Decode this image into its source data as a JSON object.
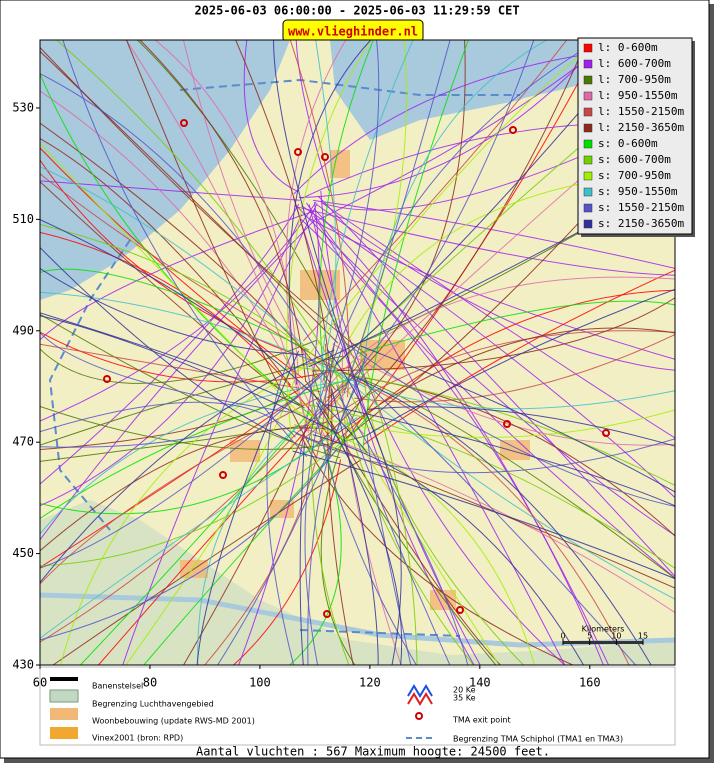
{
  "header": {
    "title": "2025-06-03 06:00:00 - 2025-06-03 11:29:59 CET",
    "link": "www.vlieghinder.nl"
  },
  "map": {
    "xlim": [
      60,
      175.5
    ],
    "ylim": [
      430,
      542.2
    ],
    "xticks": [
      60,
      80,
      100,
      120,
      140,
      160
    ],
    "yticks": [
      430,
      450,
      470,
      490,
      510,
      530
    ]
  },
  "legend": {
    "items": [
      {
        "label": "l: 0-600m",
        "color": "#ff0000"
      },
      {
        "label": "l: 600-700m",
        "color": "#a020f0"
      },
      {
        "label": "l: 700-950m",
        "color": "#4a7800"
      },
      {
        "label": "l: 950-1550m",
        "color": "#e06aa8"
      },
      {
        "label": "l: 1550-2150m",
        "color": "#c84848"
      },
      {
        "label": "l: 2150-3650m",
        "color": "#8c2a1c"
      },
      {
        "label": "s: 0-600m",
        "color": "#00e000"
      },
      {
        "label": "s: 600-700m",
        "color": "#70d000"
      },
      {
        "label": "s: 700-950m",
        "color": "#a0f000"
      },
      {
        "label": "s: 950-1550m",
        "color": "#40c0c8"
      },
      {
        "label": "s: 1550-2150m",
        "color": "#5454c8"
      },
      {
        "label": "s: 2150-3650m",
        "color": "#30309a"
      }
    ]
  },
  "scale": {
    "label": "Kilometers",
    "ticks": [
      0,
      5,
      10,
      15
    ]
  },
  "key": {
    "runways": "Banenstelsel",
    "airport_boundary": "Begrenzing Luchthavengebied",
    "housing": "Woonbebouwing (update RWS-MD 2001)",
    "vinex": "Vinex2001 (bron: RPD)",
    "ke20": "20 Ke",
    "ke35": "35 Ke",
    "tma_exit": "TMA exit point",
    "tma_boundary": "Begrenzing TMA Schiphol  (TMA1 en TMA3)"
  },
  "footer": "Aantal vluchten : 567 Maximum hoogte: 24500 feet."
}
